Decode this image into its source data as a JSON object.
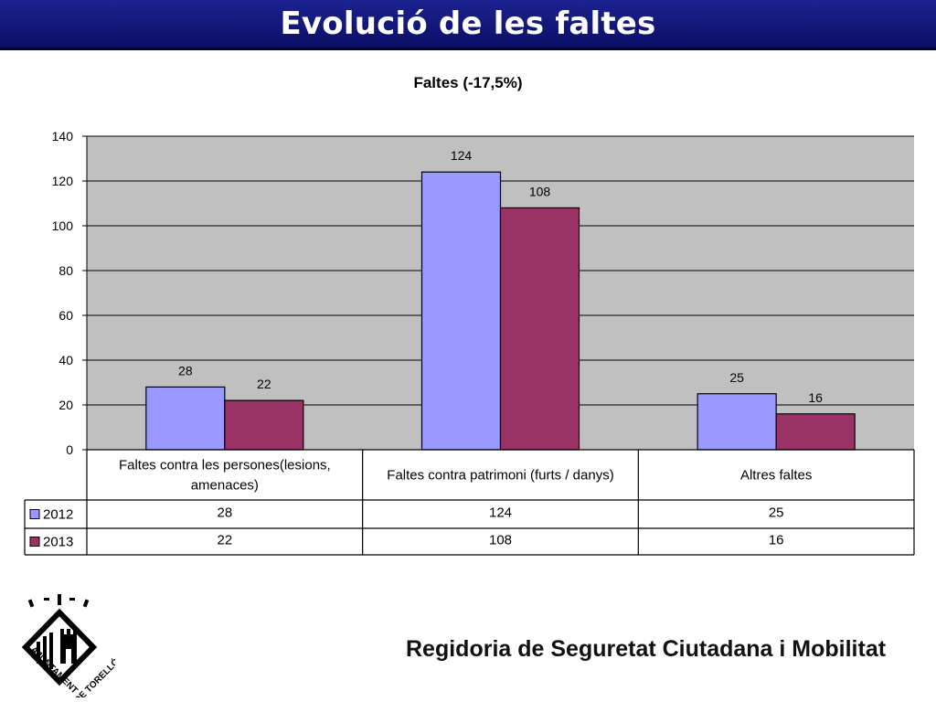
{
  "header": {
    "title": "Evolució de les faltes"
  },
  "chart_data": {
    "type": "bar",
    "title": "Faltes (-17,5%)",
    "categories": [
      [
        "Faltes contra les persones(lesions,",
        "amenaces)"
      ],
      [
        "Faltes contra patrimoni (furts / danys)"
      ],
      [
        "Altres faltes"
      ]
    ],
    "series": [
      {
        "name": "2012",
        "values": [
          28,
          124,
          25
        ],
        "color": "#9999ff"
      },
      {
        "name": "2013",
        "values": [
          22,
          108,
          16
        ],
        "color": "#993366"
      }
    ],
    "ylim": [
      0,
      140
    ],
    "yticks": [
      0,
      20,
      40,
      60,
      80,
      100,
      120,
      140
    ],
    "grid": true,
    "plot_background": "#c0c0c0",
    "legend_placement": "data table below chart"
  },
  "footer": {
    "text": "Regidoria de Seguretat Ciutadana i Mobilitat"
  },
  "seal": {
    "text_left": "AJUNTAMENT",
    "text_right": "DE TORELLÓ"
  }
}
